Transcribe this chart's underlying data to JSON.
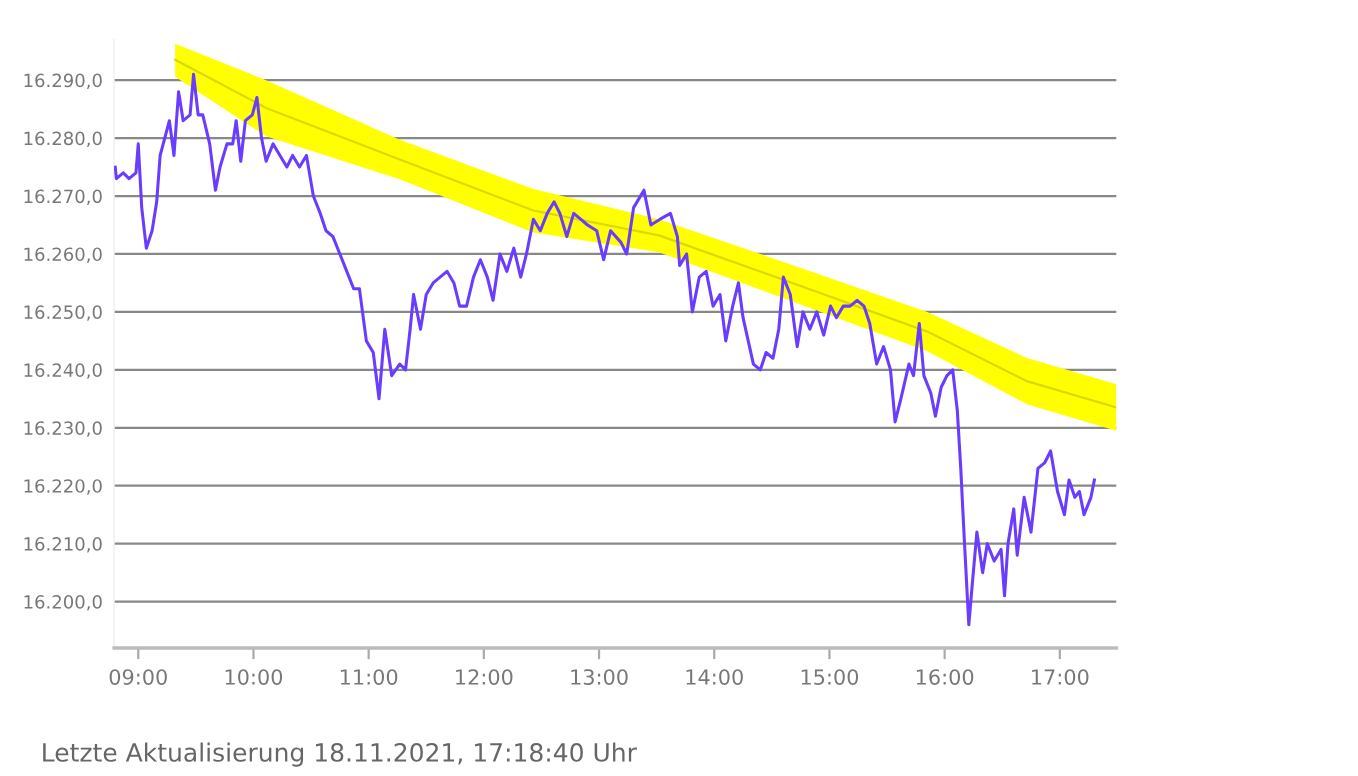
{
  "chart_data": {
    "type": "line",
    "annotations": [
      "Letzte Aktualisierung 18.11.2021, 17:18:40 Uhr"
    ],
    "xlim": [
      8.79,
      17.49
    ],
    "xticks": [
      {
        "value": 9,
        "label": "09:00"
      },
      {
        "value": 10,
        "label": "10:00"
      },
      {
        "value": 11,
        "label": "11:00"
      },
      {
        "value": 12,
        "label": "12:00"
      },
      {
        "value": 13,
        "label": "13:00"
      },
      {
        "value": 14,
        "label": "14:00"
      },
      {
        "value": 15,
        "label": "15:00"
      },
      {
        "value": 16,
        "label": "16:00"
      },
      {
        "value": 17,
        "label": "17:00"
      }
    ],
    "ylim": [
      16192,
      16297
    ],
    "yticks": [
      {
        "value": 16200,
        "label": "16.200,0"
      },
      {
        "value": 16210,
        "label": "16.210,0"
      },
      {
        "value": 16220,
        "label": "16.220,0"
      },
      {
        "value": 16230,
        "label": "16.230,0"
      },
      {
        "value": 16240,
        "label": "16.240,0"
      },
      {
        "value": 16250,
        "label": "16.250,0"
      },
      {
        "value": 16260,
        "label": "16.260,0"
      },
      {
        "value": 16270,
        "label": "16.270,0"
      },
      {
        "value": 16280,
        "label": "16.280,0"
      },
      {
        "value": 16290,
        "label": "16.290,0"
      }
    ],
    "grid": "y",
    "marker": "none",
    "line_style": "solid",
    "series": [
      {
        "type": "line",
        "color": "#d9d900",
        "x": [
          9.32,
          10.11,
          11.27,
          12.43,
          13.52,
          14.69,
          15.85,
          16.72,
          17.49
        ],
        "values": [
          16293.5,
          16285.2,
          16276.3,
          16267.5,
          16263.2,
          16254.9,
          16246.6,
          16238,
          16233.5
        ],
        "lower": [
          16290.6,
          16280.3,
          16272.9,
          16263.7,
          16260.3,
          16251.7,
          16243.2,
          16234,
          16229.5
        ],
        "upper": [
          16296.3,
          16290,
          16279.7,
          16271.2,
          16266,
          16258,
          16250,
          16242,
          16237.5
        ]
      },
      {
        "color": "#6a3cff",
        "x": [
          8.8,
          8.81,
          8.87,
          8.92,
          8.98,
          9.0,
          9.03,
          9.07,
          9.12,
          9.16,
          9.19,
          9.23,
          9.27,
          9.31,
          9.35,
          9.39,
          9.45,
          9.48,
          9.52,
          9.56,
          9.62,
          9.67,
          9.71,
          9.77,
          9.82,
          9.85,
          9.89,
          9.93,
          9.99,
          10.03,
          10.07,
          10.11,
          10.17,
          10.23,
          10.29,
          10.34,
          10.4,
          10.46,
          10.52,
          10.58,
          10.63,
          10.69,
          10.75,
          10.81,
          10.87,
          10.92,
          10.98,
          11.04,
          11.09,
          11.14,
          11.2,
          11.27,
          11.32,
          11.36,
          11.39,
          11.45,
          11.5,
          11.56,
          11.62,
          11.68,
          11.74,
          11.79,
          11.85,
          11.91,
          11.97,
          12.03,
          12.08,
          12.14,
          12.2,
          12.26,
          12.32,
          12.37,
          12.43,
          12.49,
          12.55,
          12.61,
          12.66,
          12.72,
          12.78,
          12.84,
          12.9,
          12.98,
          13.04,
          13.1,
          13.19,
          13.24,
          13.3,
          13.39,
          13.45,
          13.53,
          13.62,
          13.68,
          13.7,
          13.76,
          13.81,
          13.87,
          13.93,
          13.99,
          14.05,
          14.1,
          14.16,
          14.21,
          14.25,
          14.34,
          14.4,
          14.45,
          14.51,
          14.56,
          14.6,
          14.66,
          14.72,
          14.77,
          14.83,
          14.89,
          14.95,
          15.01,
          15.06,
          15.12,
          15.18,
          15.24,
          15.3,
          15.35,
          15.41,
          15.47,
          15.53,
          15.57,
          15.62,
          15.69,
          15.73,
          15.78,
          15.82,
          15.88,
          15.92,
          15.97,
          16.02,
          16.07,
          16.11,
          16.14,
          16.17,
          16.21,
          16.24,
          16.28,
          16.33,
          16.37,
          16.43,
          16.49,
          16.52,
          16.55,
          16.6,
          16.63,
          16.69,
          16.75,
          16.81,
          16.87,
          16.92,
          16.98,
          17.04,
          17.08,
          17.13,
          17.17,
          17.21,
          17.27,
          17.3
        ],
        "values": [
          16275,
          16273,
          16274,
          16273,
          16274,
          16279,
          16268,
          16261,
          16264,
          16269,
          16277,
          16280,
          16283,
          16277,
          16288,
          16283,
          16284,
          16291,
          16284,
          16284,
          16279,
          16271,
          16275,
          16279,
          16279,
          16283,
          16276,
          16283,
          16284,
          16287,
          16280,
          16276,
          16279,
          16277,
          16275,
          16277,
          16275,
          16277,
          16270,
          16267,
          16264,
          16263,
          16260,
          16257,
          16254,
          16254,
          16245,
          16243,
          16235,
          16247,
          16239,
          16241,
          16240,
          16247,
          16253,
          16247,
          16253,
          16255,
          16256,
          16257,
          16255,
          16251,
          16251,
          16256,
          16259,
          16256,
          16252,
          16260,
          16257,
          16261,
          16256,
          16260,
          16266,
          16264,
          16267,
          16269,
          16267,
          16263,
          16267,
          16266,
          16265,
          16264,
          16259,
          16264,
          16262,
          16260,
          16268,
          16271,
          16265,
          16266,
          16267,
          16263,
          16258,
          16260,
          16250,
          16256,
          16257,
          16251,
          16253,
          16245,
          16251,
          16255,
          16249,
          16241,
          16240,
          16243,
          16242,
          16247,
          16256,
          16253,
          16244,
          16250,
          16247,
          16250,
          16246,
          16251,
          16249,
          16251,
          16251,
          16252,
          16251,
          16248,
          16241,
          16244,
          16240,
          16231,
          16235,
          16241,
          16239,
          16248,
          16239,
          16236,
          16232,
          16237,
          16239,
          16240,
          16233,
          16223,
          16211,
          16196,
          16203,
          16212,
          16205,
          16210,
          16207,
          16209,
          16201,
          16210,
          16216,
          16208,
          16218,
          16212,
          16223,
          16224,
          16226,
          16219,
          16215,
          16221,
          16218,
          16219,
          16215,
          16218,
          16221
        ]
      }
    ]
  }
}
